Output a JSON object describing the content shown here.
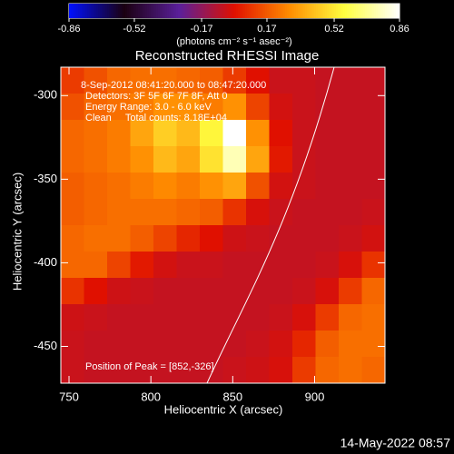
{
  "chart_data": {
    "type": "heatmap",
    "title": "Reconstructed RHESSI Image",
    "colorbar_label": "(photons cm⁻² s⁻¹ asec⁻²)",
    "x_label": "Heliocentric X (arcsec)",
    "y_label": "Heliocentric Y (arcsec)",
    "annotations": [
      "8-Sep-2012 08:41:20.000 to 08:47:20.000",
      "Detectors: 3F 5F 6F 7F 8F, Att 0",
      "Energy Range: 3.0 - 6.0 keV",
      "Clean     Total counts: 8.18E+04",
      "Position of Peak = [852,-326]"
    ],
    "footer": "14-May-2022 08:57",
    "xlim": [
      745,
      943
    ],
    "xticks": [
      750,
      800,
      850,
      900
    ],
    "ylim": [
      -472,
      -283
    ],
    "yticks": [
      -300,
      -350,
      -400,
      -450
    ],
    "clim": [
      -0.86,
      0.86
    ],
    "cticks": [
      -0.86,
      -0.52,
      -0.17,
      0.17,
      0.52,
      0.86
    ],
    "colors": [
      "#0010ff",
      "#1a0010",
      "#5a1f9a",
      "#e01000",
      "#ff8c00",
      "#ffff40",
      "#ffffff"
    ],
    "z": [
      [
        0.1,
        0.15,
        0.2,
        0.22,
        0.22,
        0.2,
        0.18,
        0.1,
        0.0,
        -0.05,
        -0.05,
        -0.06,
        -0.06,
        -0.06
      ],
      [
        0.15,
        0.2,
        0.22,
        0.25,
        0.3,
        0.3,
        0.25,
        0.3,
        0.12,
        -0.03,
        -0.05,
        -0.06,
        -0.06,
        -0.06
      ],
      [
        0.2,
        0.22,
        0.25,
        0.35,
        0.45,
        0.4,
        0.55,
        0.86,
        0.3,
        0.0,
        -0.05,
        -0.06,
        -0.06,
        -0.06
      ],
      [
        0.2,
        0.22,
        0.25,
        0.3,
        0.4,
        0.35,
        0.5,
        0.75,
        0.35,
        0.02,
        -0.05,
        -0.06,
        -0.06,
        -0.06
      ],
      [
        0.18,
        0.2,
        0.22,
        0.25,
        0.28,
        0.25,
        0.3,
        0.35,
        0.15,
        -0.03,
        -0.05,
        -0.06,
        -0.06,
        -0.06
      ],
      [
        0.18,
        0.2,
        0.22,
        0.22,
        0.22,
        0.2,
        0.18,
        0.08,
        -0.02,
        -0.05,
        -0.06,
        -0.06,
        -0.06,
        -0.05
      ],
      [
        0.2,
        0.22,
        0.22,
        0.18,
        0.12,
        0.05,
        0.0,
        -0.04,
        -0.05,
        -0.06,
        -0.06,
        -0.06,
        -0.05,
        -0.03
      ],
      [
        0.2,
        0.2,
        0.12,
        0.02,
        -0.03,
        -0.05,
        -0.05,
        -0.06,
        -0.06,
        -0.06,
        -0.06,
        -0.05,
        -0.02,
        0.08
      ],
      [
        0.08,
        0.0,
        -0.04,
        -0.05,
        -0.06,
        -0.06,
        -0.06,
        -0.06,
        -0.06,
        -0.06,
        -0.05,
        -0.02,
        0.1,
        0.2
      ],
      [
        -0.04,
        -0.05,
        -0.06,
        -0.06,
        -0.06,
        -0.06,
        -0.06,
        -0.06,
        -0.06,
        -0.05,
        -0.02,
        0.1,
        0.2,
        0.22
      ],
      [
        -0.05,
        -0.06,
        -0.06,
        -0.06,
        -0.06,
        -0.06,
        -0.06,
        -0.06,
        -0.05,
        -0.03,
        0.05,
        0.18,
        0.22,
        0.22
      ],
      [
        -0.05,
        -0.06,
        -0.06,
        -0.06,
        -0.06,
        -0.06,
        -0.06,
        -0.05,
        -0.04,
        -0.02,
        0.1,
        0.2,
        0.22,
        0.2
      ]
    ]
  }
}
